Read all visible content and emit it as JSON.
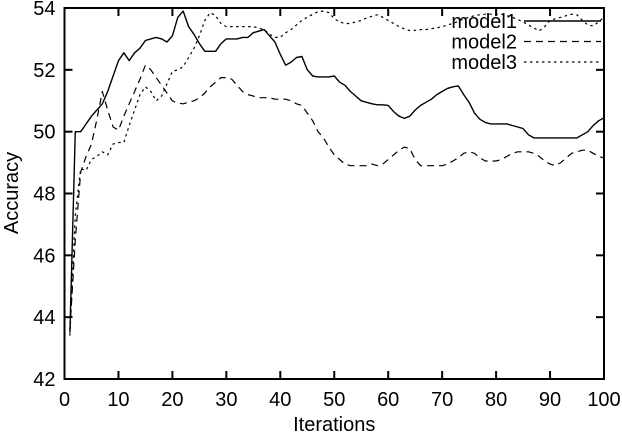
{
  "figure": {
    "kind": "gnuplot-style line chart",
    "background": "#ffffff",
    "foreground": "#000000"
  },
  "chart_data": {
    "type": "line",
    "title": "",
    "xlabel": "Iterations",
    "ylabel": "Accuracy",
    "xlim": [
      0,
      100
    ],
    "ylim": [
      42,
      54
    ],
    "xticks": [
      0,
      10,
      20,
      30,
      40,
      50,
      60,
      70,
      80,
      90,
      100
    ],
    "yticks": [
      42,
      44,
      46,
      48,
      50,
      52,
      54
    ],
    "grid": false,
    "legend_position": "top-right-inside",
    "line_color": "#000000",
    "x": [
      1,
      2,
      3,
      4,
      5,
      6,
      7,
      8,
      9,
      10,
      11,
      12,
      13,
      14,
      15,
      16,
      17,
      18,
      19,
      20,
      21,
      22,
      23,
      24,
      25,
      26,
      27,
      28,
      29,
      30,
      31,
      32,
      33,
      34,
      35,
      36,
      37,
      38,
      39,
      40,
      41,
      42,
      43,
      44,
      45,
      46,
      47,
      48,
      49,
      50,
      51,
      52,
      53,
      54,
      55,
      56,
      57,
      58,
      59,
      60,
      61,
      62,
      63,
      64,
      65,
      66,
      67,
      68,
      69,
      70,
      71,
      72,
      73,
      74,
      75,
      76,
      77,
      78,
      79,
      80,
      81,
      82,
      83,
      84,
      85,
      86,
      87,
      88,
      89,
      90,
      91,
      92,
      93,
      94,
      95,
      96,
      97,
      98,
      99,
      100
    ],
    "series": [
      {
        "name": "model1",
        "style": "solid",
        "values": [
          43.5,
          50.0,
          50.0,
          50.25,
          50.5,
          50.7,
          50.9,
          51.3,
          51.8,
          52.3,
          52.55,
          52.3,
          52.55,
          52.7,
          52.95,
          53.0,
          53.05,
          53.0,
          52.9,
          53.1,
          53.7,
          53.9,
          53.4,
          53.15,
          52.85,
          52.6,
          52.6,
          52.6,
          52.85,
          53.0,
          53.0,
          53.0,
          53.05,
          53.05,
          53.2,
          53.25,
          53.3,
          53.1,
          52.9,
          52.5,
          52.15,
          52.25,
          52.4,
          52.43,
          52.0,
          51.8,
          51.77,
          51.77,
          51.77,
          51.8,
          51.6,
          51.5,
          51.3,
          51.15,
          51.0,
          50.95,
          50.9,
          50.87,
          50.87,
          50.85,
          50.65,
          50.5,
          50.43,
          50.5,
          50.7,
          50.85,
          50.95,
          51.05,
          51.2,
          51.3,
          51.4,
          51.45,
          51.48,
          51.2,
          50.95,
          50.6,
          50.4,
          50.3,
          50.25,
          50.25,
          50.25,
          50.25,
          50.2,
          50.15,
          50.1,
          49.9,
          49.8,
          49.8,
          49.8,
          49.8,
          49.8,
          49.8,
          49.8,
          49.8,
          49.8,
          49.9,
          50.0,
          50.2,
          50.35,
          50.45
        ]
      },
      {
        "name": "model2",
        "style": "long-dash",
        "values": [
          43.6,
          46.5,
          48.7,
          49.2,
          49.6,
          50.4,
          51.3,
          50.7,
          50.15,
          50.05,
          50.5,
          50.9,
          51.3,
          51.7,
          52.15,
          52.0,
          51.75,
          51.5,
          51.25,
          51.0,
          50.92,
          50.9,
          50.95,
          51.0,
          51.1,
          51.25,
          51.45,
          51.6,
          51.75,
          51.75,
          51.7,
          51.5,
          51.3,
          51.2,
          51.15,
          51.1,
          51.1,
          51.1,
          51.05,
          51.05,
          51.05,
          51.0,
          50.9,
          50.85,
          50.6,
          50.35,
          50.0,
          49.8,
          49.5,
          49.25,
          49.1,
          48.95,
          48.9,
          48.9,
          48.9,
          48.9,
          48.95,
          48.9,
          48.95,
          49.1,
          49.25,
          49.4,
          49.5,
          49.45,
          49.1,
          48.9,
          48.9,
          48.9,
          48.9,
          48.9,
          48.95,
          49.05,
          49.15,
          49.3,
          49.35,
          49.3,
          49.15,
          49.05,
          49.05,
          49.05,
          49.1,
          49.2,
          49.3,
          49.35,
          49.35,
          49.35,
          49.3,
          49.2,
          49.05,
          48.95,
          48.9,
          49.0,
          49.15,
          49.3,
          49.35,
          49.4,
          49.4,
          49.3,
          49.2,
          49.15
        ]
      },
      {
        "name": "model3",
        "style": "short-dash",
        "values": [
          43.4,
          47.3,
          48.8,
          48.75,
          49.1,
          49.2,
          49.35,
          49.25,
          49.6,
          49.65,
          49.65,
          50.2,
          50.7,
          51.2,
          51.45,
          51.3,
          51.0,
          51.15,
          51.55,
          51.95,
          52.0,
          52.1,
          52.4,
          52.7,
          53.1,
          53.6,
          53.85,
          53.75,
          53.5,
          53.4,
          53.4,
          53.4,
          53.4,
          53.4,
          53.4,
          53.35,
          53.3,
          53.15,
          53.05,
          53.05,
          53.2,
          53.3,
          53.45,
          53.6,
          53.7,
          53.8,
          53.88,
          53.9,
          53.85,
          53.65,
          53.55,
          53.5,
          53.5,
          53.55,
          53.6,
          53.68,
          53.73,
          53.78,
          53.7,
          53.6,
          53.5,
          53.4,
          53.32,
          53.27,
          53.28,
          53.3,
          53.3,
          53.33,
          53.36,
          53.4,
          53.45,
          53.5,
          53.57,
          53.65,
          53.7,
          53.75,
          53.78,
          53.8,
          53.8,
          53.8,
          53.8,
          53.75,
          53.7,
          53.63,
          53.55,
          53.45,
          53.35,
          53.26,
          53.4,
          53.6,
          53.65,
          53.7,
          53.75,
          53.8,
          53.78,
          53.6,
          53.45,
          53.42,
          53.55,
          53.7
        ]
      }
    ],
    "legend_entries": [
      "model1",
      "model2",
      "model3"
    ]
  }
}
